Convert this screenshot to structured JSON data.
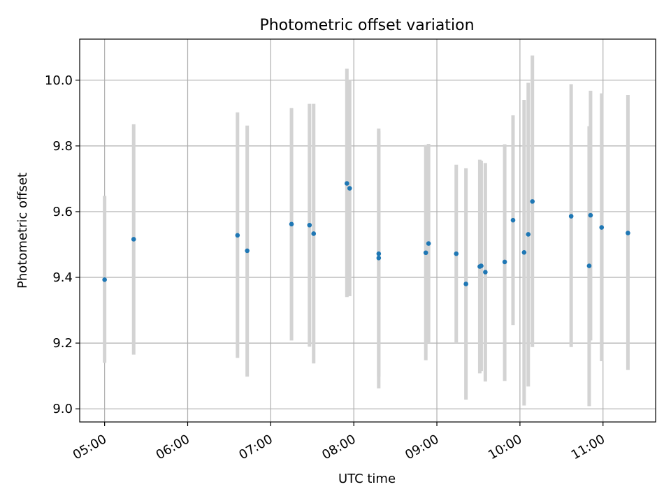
{
  "chart_data": {
    "type": "scatter",
    "title": "Photometric offset variation",
    "xlabel": "UTC time",
    "ylabel": "Photometric offset",
    "x_ticks": [
      "05:00",
      "06:00",
      "07:00",
      "08:00",
      "09:00",
      "10:00",
      "11:00"
    ],
    "y_ticks": [
      "9.0",
      "9.2",
      "9.4",
      "9.6",
      "9.8",
      "10.0"
    ],
    "xlim": [
      "04:42",
      "11:38"
    ],
    "ylim": [
      8.96,
      10.125
    ],
    "grid": true,
    "colors": {
      "point": "#1f77b4",
      "errorbar": "#d3d3d3",
      "grid": "#b0b0b0",
      "axis": "#000000"
    },
    "points": [
      {
        "t": "05:00",
        "y": 9.393,
        "ylow": 9.14,
        "yhigh": 9.648
      },
      {
        "t": "05:21",
        "y": 9.516,
        "ylow": 9.165,
        "yhigh": 9.866
      },
      {
        "t": "06:36",
        "y": 9.528,
        "ylow": 9.155,
        "yhigh": 9.902
      },
      {
        "t": "06:43",
        "y": 9.481,
        "ylow": 9.098,
        "yhigh": 9.862
      },
      {
        "t": "07:15",
        "y": 9.562,
        "ylow": 9.208,
        "yhigh": 9.915
      },
      {
        "t": "07:28",
        "y": 9.559,
        "ylow": 9.189,
        "yhigh": 9.928
      },
      {
        "t": "07:31",
        "y": 9.533,
        "ylow": 9.138,
        "yhigh": 9.928
      },
      {
        "t": "07:55",
        "y": 9.686,
        "ylow": 9.34,
        "yhigh": 10.035
      },
      {
        "t": "07:57",
        "y": 9.671,
        "ylow": 9.343,
        "yhigh": 10.0
      },
      {
        "t": "08:18",
        "y": 9.472,
        "ylow": 9.098,
        "yhigh": 9.853
      },
      {
        "t": "08:18",
        "y": 9.459,
        "ylow": 9.062,
        "yhigh": 9.845
      },
      {
        "t": "08:52",
        "y": 9.475,
        "ylow": 9.148,
        "yhigh": 9.803
      },
      {
        "t": "08:54",
        "y": 9.503,
        "ylow": 9.2,
        "yhigh": 9.806
      },
      {
        "t": "09:14",
        "y": 9.472,
        "ylow": 9.2,
        "yhigh": 9.743
      },
      {
        "t": "09:21",
        "y": 9.38,
        "ylow": 9.028,
        "yhigh": 9.732
      },
      {
        "t": "09:31",
        "y": 9.433,
        "ylow": 9.108,
        "yhigh": 9.758
      },
      {
        "t": "09:32",
        "y": 9.435,
        "ylow": 9.115,
        "yhigh": 9.755
      },
      {
        "t": "09:35",
        "y": 9.416,
        "ylow": 9.083,
        "yhigh": 9.748
      },
      {
        "t": "09:49",
        "y": 9.447,
        "ylow": 9.085,
        "yhigh": 9.805
      },
      {
        "t": "09:55",
        "y": 9.574,
        "ylow": 9.255,
        "yhigh": 9.893
      },
      {
        "t": "10:03",
        "y": 9.476,
        "ylow": 9.01,
        "yhigh": 9.94
      },
      {
        "t": "10:06",
        "y": 9.531,
        "ylow": 9.068,
        "yhigh": 9.992
      },
      {
        "t": "10:09",
        "y": 9.631,
        "ylow": 9.188,
        "yhigh": 10.075
      },
      {
        "t": "10:37",
        "y": 9.586,
        "ylow": 9.188,
        "yhigh": 9.988
      },
      {
        "t": "10:50",
        "y": 9.435,
        "ylow": 9.008,
        "yhigh": 9.86
      },
      {
        "t": "10:51",
        "y": 9.589,
        "ylow": 9.208,
        "yhigh": 9.968
      },
      {
        "t": "10:59",
        "y": 9.552,
        "ylow": 9.145,
        "yhigh": 9.96
      },
      {
        "t": "11:18",
        "y": 9.535,
        "ylow": 9.118,
        "yhigh": 9.955
      }
    ]
  }
}
